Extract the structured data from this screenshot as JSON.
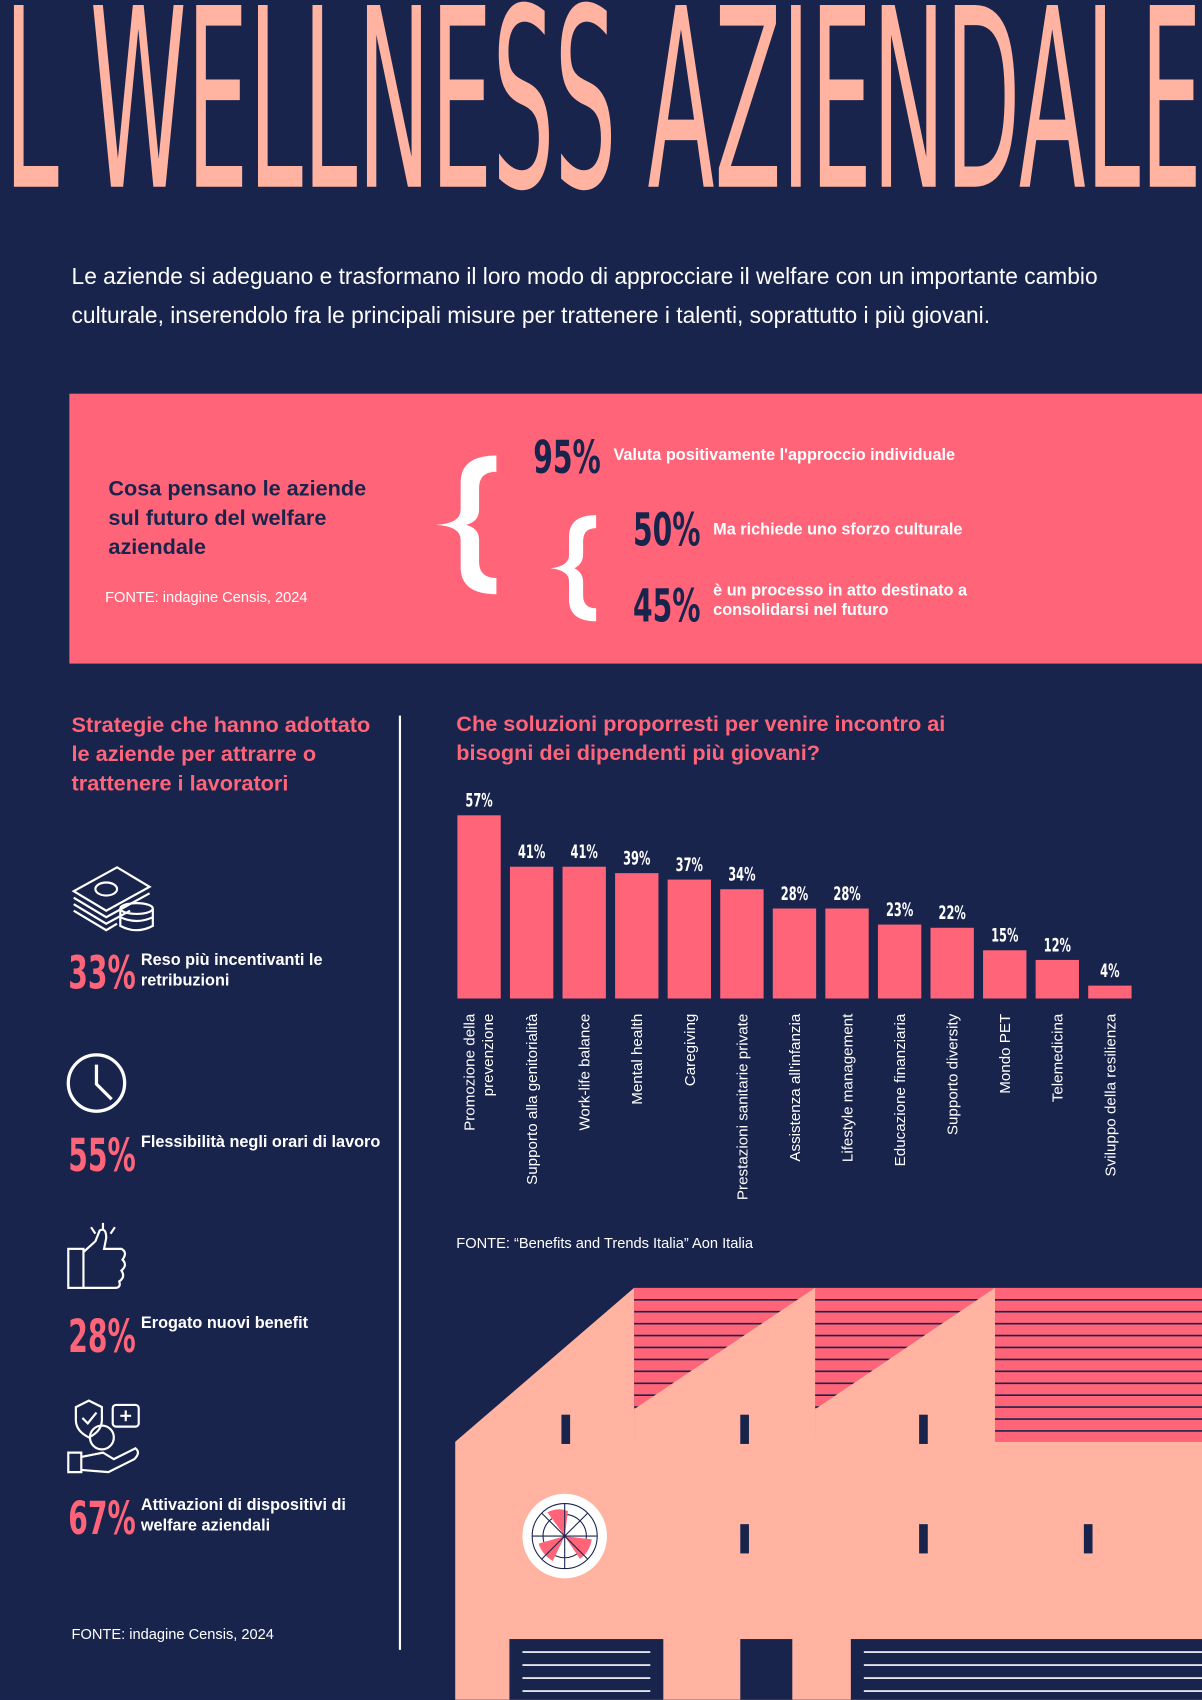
{
  "header": {
    "title": "L WELLNESS AZIENDALE",
    "intro": "Le aziende si adeguano e trasformano il loro modo di approcciare il welfare con un importante cambio culturale, inserendolo fra le principali misure per trattenere i talenti, soprattutto i più giovani."
  },
  "survey": {
    "title": "Cosa pensano le aziende sul futuro del welfare aziendale",
    "source": "FONTE: indagine Censis, 2024",
    "stats": [
      {
        "value": "95%",
        "text": "Valuta positivamente l'approccio individuale"
      },
      {
        "value": "50%",
        "text": "Ma richiede uno sforzo culturale"
      },
      {
        "value": "45%",
        "text": "è un processo in atto destinato a consolidarsi nel futuro"
      }
    ]
  },
  "strategies": {
    "title": "Strategie che hanno adottato le aziende per attrarre o trattenere i lavoratori",
    "items": [
      {
        "value": "33%",
        "text": "Reso più incentivanti le retribuzioni"
      },
      {
        "value": "55%",
        "text": "Flessibilità negli orari di lavoro"
      },
      {
        "value": "28%",
        "text": "Erogato nuovi benefit"
      },
      {
        "value": "67%",
        "text": "Attivazioni di dispositivi di welfare aziendali"
      }
    ],
    "source": "FONTE: indagine Censis, 2024"
  },
  "chart_data": {
    "type": "bar",
    "title": "Che soluzioni proporresti per venire incontro ai bisogni dei dipendenti più giovani?",
    "categories": [
      "Promozione della prevenzione",
      "Supporto alla genitorialità",
      "Work-life balance",
      "Mental health",
      "Caregiving",
      "Prestazioni sanitarie private",
      "Assistenza all'infanzia",
      "Lifestyle management",
      "Educazione finanziaria",
      "Supporto diversity",
      "Mondo PET",
      "Telemedicina",
      "Sviluppo della resilienza"
    ],
    "values": [
      57,
      41,
      41,
      39,
      37,
      34,
      28,
      28,
      23,
      22,
      15,
      12,
      4
    ],
    "value_labels": [
      "57%",
      "41%",
      "41%",
      "39%",
      "37%",
      "34%",
      "28%",
      "28%",
      "23%",
      "22%",
      "15%",
      "12%",
      "4%"
    ],
    "color": "#ff6479",
    "source": "FONTE: “Benefits and Trends Italia” Aon Italia"
  }
}
